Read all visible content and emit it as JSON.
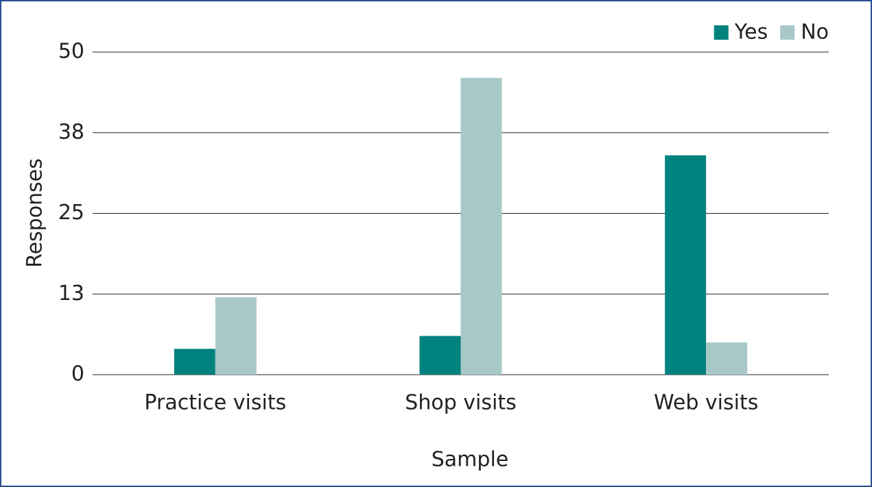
{
  "chart_data": {
    "type": "bar",
    "x_label": "Sample",
    "y_label": "Responses",
    "categories": [
      "Practice visits",
      "Shop visits",
      "Web visits"
    ],
    "series": [
      {
        "name": "Yes",
        "color": "#00827f",
        "values": [
          4,
          6,
          34
        ]
      },
      {
        "name": "No",
        "color": "#a8c8c8",
        "values": [
          12,
          46,
          5
        ]
      }
    ],
    "ylim": [
      0,
      50
    ],
    "yticks": [
      0,
      {
        "value": 12.5,
        "label": "13"
      },
      25,
      {
        "value": 37.5,
        "label": "38"
      },
      50
    ],
    "grid": true,
    "legend": "top-right"
  }
}
